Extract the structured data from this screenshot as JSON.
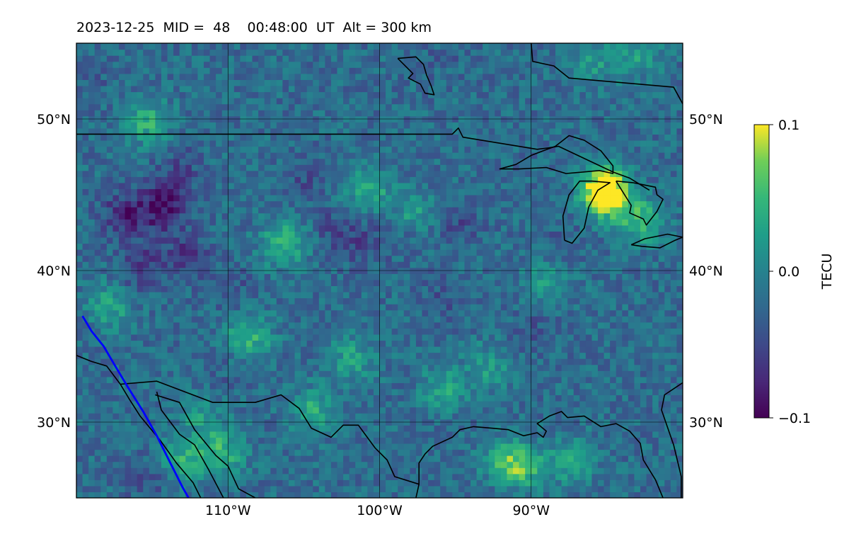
{
  "title": "2023-12-25  MID =  48    00:48:00  UT  Alt = 300 km",
  "chart_data": {
    "type": "heatmap",
    "title": "2023-12-25  MID =  48    00:48:00  UT  Alt = 300 km",
    "x_axis": {
      "lim": [
        -120,
        -80
      ],
      "ticks": [
        -110,
        -100,
        -90
      ],
      "tick_labels": [
        "110°W",
        "100°W",
        "90°W"
      ]
    },
    "y_axis": {
      "lim": [
        25,
        55
      ],
      "ticks": [
        30,
        40,
        50
      ],
      "tick_labels": [
        "30°N",
        "40°N",
        "50°N"
      ]
    },
    "grid": true,
    "colormap": "viridis",
    "colorbar": {
      "label": "TECU",
      "range": [
        -0.1,
        0.1
      ],
      "ticks": [
        0.1,
        0.0,
        -0.1
      ],
      "tick_labels": [
        "0.1",
        "0.0",
        "−0.1"
      ]
    },
    "field": {
      "background_tecu": -0.02,
      "anomalies": [
        {
          "lon": -114.5,
          "lat": 44.0,
          "tecu": -0.09
        },
        {
          "lon": -117.0,
          "lat": 43.5,
          "tecu": -0.075
        },
        {
          "lon": -116.0,
          "lat": 40.2,
          "tecu": -0.065
        },
        {
          "lon": -113.0,
          "lat": 40.8,
          "tecu": -0.06
        },
        {
          "lon": -113.5,
          "lat": 46.5,
          "tecu": -0.05
        },
        {
          "lon": -103.0,
          "lat": 42.5,
          "tecu": -0.05
        },
        {
          "lon": -101.0,
          "lat": 41.5,
          "tecu": -0.045
        },
        {
          "lon": -98.5,
          "lat": 42.5,
          "tecu": -0.04
        },
        {
          "lon": -95.0,
          "lat": 43.0,
          "tecu": -0.045
        },
        {
          "lon": -96.0,
          "lat": 38.0,
          "tecu": -0.04
        },
        {
          "lon": -105.0,
          "lat": 46.0,
          "tecu": -0.045
        },
        {
          "lon": -110.0,
          "lat": 38.5,
          "tecu": -0.04
        },
        {
          "lon": -88.0,
          "lat": 41.5,
          "tecu": -0.035
        },
        {
          "lon": -90.0,
          "lat": 36.0,
          "tecu": -0.035
        },
        {
          "lon": -96.0,
          "lat": 54.0,
          "tecu": -0.03
        },
        {
          "lon": -92.0,
          "lat": 26.0,
          "tecu": -0.04
        },
        {
          "lon": -110.0,
          "lat": 33.0,
          "tecu": -0.03
        },
        {
          "lon": -115.5,
          "lat": 26.0,
          "tecu": -0.045
        },
        {
          "lon": -119.0,
          "lat": 52.0,
          "tecu": -0.03
        },
        {
          "lon": -86.0,
          "lat": 53.5,
          "tecu": 0.02
        },
        {
          "lon": -83.0,
          "lat": 54.0,
          "tecu": 0.02
        },
        {
          "lon": -110.5,
          "lat": 27.8,
          "tecu": 0.045
        },
        {
          "lon": -113.2,
          "lat": 27.2,
          "tecu": 0.04
        },
        {
          "lon": -108.8,
          "lat": 35.5,
          "tecu": 0.045
        },
        {
          "lon": -106.5,
          "lat": 41.6,
          "tecu": 0.05
        },
        {
          "lon": -115.5,
          "lat": 49.6,
          "tecu": 0.04
        },
        {
          "lon": -92.0,
          "lat": 27.0,
          "tecu": 0.05
        },
        {
          "lon": -90.5,
          "lat": 26.8,
          "tecu": 0.045
        },
        {
          "lon": -87.5,
          "lat": 27.2,
          "tecu": 0.03
        },
        {
          "lon": -85.1,
          "lat": 44.9,
          "tecu": 0.09
        },
        {
          "lon": -85.6,
          "lat": 45.3,
          "tecu": 0.06
        },
        {
          "lon": -83.0,
          "lat": 43.1,
          "tecu": 0.05
        },
        {
          "lon": -101.0,
          "lat": 45.2,
          "tecu": 0.04
        },
        {
          "lon": -98.0,
          "lat": 43.5,
          "tecu": 0.03
        },
        {
          "lon": -102.0,
          "lat": 34.0,
          "tecu": 0.03
        },
        {
          "lon": -96.0,
          "lat": 32.0,
          "tecu": 0.03
        },
        {
          "lon": -104.5,
          "lat": 30.6,
          "tecu": 0.035
        },
        {
          "lon": -118.0,
          "lat": 37.5,
          "tecu": 0.03
        },
        {
          "lon": -112.0,
          "lat": 30.0,
          "tecu": 0.02
        },
        {
          "lon": -89.0,
          "lat": 39.0,
          "tecu": 0.025
        },
        {
          "lon": -93.0,
          "lat": 33.5,
          "tecu": 0.02
        }
      ]
    },
    "boundaries": [
      {
        "name": "us-canada-border",
        "points": [
          [
            -120,
            49
          ],
          [
            -95.2,
            49
          ],
          [
            -94.8,
            49.4
          ],
          [
            -94.5,
            48.8
          ],
          [
            -89.6,
            48
          ],
          [
            -88.8,
            48.1
          ],
          [
            -88.2,
            48.2
          ],
          [
            -84.6,
            46.5
          ],
          [
            -83.5,
            46.1
          ],
          [
            -82.2,
            45.3
          ]
        ]
      },
      {
        "name": "lake-superior",
        "points": [
          [
            -92.1,
            46.7
          ],
          [
            -91,
            47
          ],
          [
            -90,
            47.6
          ],
          [
            -89.2,
            47.9
          ],
          [
            -88.4,
            48.2
          ],
          [
            -87.5,
            48.9
          ],
          [
            -86.5,
            48.6
          ],
          [
            -85.4,
            47.9
          ],
          [
            -84.6,
            46.9
          ],
          [
            -84.6,
            46.4
          ],
          [
            -85.5,
            46.6
          ],
          [
            -86.6,
            46.5
          ],
          [
            -87.7,
            46.4
          ],
          [
            -89,
            46.8
          ],
          [
            -90.8,
            46.7
          ],
          [
            -92.1,
            46.7
          ]
        ]
      },
      {
        "name": "lake-michigan",
        "points": [
          [
            -87.8,
            42
          ],
          [
            -87.9,
            43.6
          ],
          [
            -87.5,
            45
          ],
          [
            -86.8,
            45.9
          ],
          [
            -86,
            45.9
          ],
          [
            -84.8,
            45.8
          ],
          [
            -85.6,
            45.3
          ],
          [
            -86.2,
            44.2
          ],
          [
            -86.5,
            42.8
          ],
          [
            -87.3,
            41.8
          ],
          [
            -87.8,
            42
          ]
        ]
      },
      {
        "name": "lake-huron",
        "points": [
          [
            -84.4,
            45.9
          ],
          [
            -83.3,
            45.8
          ],
          [
            -81.8,
            45.5
          ],
          [
            -81.7,
            45.0
          ],
          [
            -81.3,
            44.7
          ],
          [
            -81.7,
            43.9
          ],
          [
            -82.4,
            43.0
          ],
          [
            -82.6,
            43.4
          ],
          [
            -83.5,
            43.8
          ],
          [
            -83.4,
            44.3
          ],
          [
            -84.4,
            45.9
          ]
        ]
      },
      {
        "name": "lake-erie",
        "points": [
          [
            -83.4,
            41.7
          ],
          [
            -82.7,
            41.6
          ],
          [
            -81.5,
            41.5
          ],
          [
            -80.5,
            42.0
          ],
          [
            -80,
            42.2
          ],
          [
            -81,
            42.4
          ],
          [
            -82.5,
            42.1
          ],
          [
            -83.4,
            41.7
          ]
        ]
      },
      {
        "name": "lake-winnipeg",
        "points": [
          [
            -98.8,
            54
          ],
          [
            -97.6,
            54.1
          ],
          [
            -97.1,
            53.6
          ],
          [
            -96.9,
            52.9
          ],
          [
            -96.6,
            52.2
          ],
          [
            -96.4,
            51.6
          ],
          [
            -97,
            51.7
          ],
          [
            -97.3,
            52.3
          ],
          [
            -98.1,
            52.7
          ],
          [
            -97.8,
            53.0
          ],
          [
            -98.8,
            54
          ]
        ]
      },
      {
        "name": "hudson-bay-coast",
        "points": [
          [
            -90,
            55
          ],
          [
            -89.9,
            53.8
          ],
          [
            -88.5,
            53.5
          ],
          [
            -87.5,
            52.7
          ],
          [
            -80.6,
            52.1
          ],
          [
            -80,
            51
          ]
        ]
      },
      {
        "name": "us-mexico-border-and-gulf-coast",
        "points": [
          [
            -120,
            34.4
          ],
          [
            -119,
            34
          ],
          [
            -118,
            33.7
          ],
          [
            -117.1,
            32.5
          ],
          [
            -114.7,
            32.7
          ],
          [
            -111,
            31.3
          ],
          [
            -108.2,
            31.3
          ],
          [
            -106.5,
            31.8
          ],
          [
            -105.3,
            30.9
          ],
          [
            -104.5,
            29.6
          ],
          [
            -103.2,
            29
          ],
          [
            -102.4,
            29.8
          ],
          [
            -101.4,
            29.8
          ],
          [
            -100.3,
            28.3
          ],
          [
            -99.5,
            27.5
          ],
          [
            -99,
            26.4
          ],
          [
            -97.4,
            25.9
          ],
          [
            -97.4,
            27.3
          ],
          [
            -97.0,
            27.9
          ],
          [
            -96.5,
            28.4
          ],
          [
            -95.2,
            29
          ],
          [
            -94.7,
            29.5
          ],
          [
            -93.8,
            29.7
          ],
          [
            -92.6,
            29.6
          ],
          [
            -91.5,
            29.5
          ],
          [
            -90.5,
            29.1
          ],
          [
            -89.6,
            29.3
          ],
          [
            -89.2,
            29.0
          ],
          [
            -89,
            29.4
          ],
          [
            -89.6,
            29.9
          ],
          [
            -88.8,
            30.4
          ],
          [
            -88.0,
            30.7
          ],
          [
            -87.6,
            30.3
          ],
          [
            -86.5,
            30.4
          ],
          [
            -85.4,
            29.7
          ],
          [
            -84.4,
            29.9
          ],
          [
            -83.5,
            29.4
          ],
          [
            -82.8,
            28.6
          ],
          [
            -82.6,
            27.5
          ],
          [
            -81.8,
            26.2
          ],
          [
            -81.3,
            25
          ]
        ]
      },
      {
        "name": "mexico-gulf-coast",
        "points": [
          [
            -97.4,
            25.9
          ],
          [
            -97.6,
            25
          ],
          [
            -97.7,
            24.5
          ]
        ]
      },
      {
        "name": "florida-atlantic-coast",
        "points": [
          [
            -80.1,
            25
          ],
          [
            -80.1,
            26.4
          ],
          [
            -80.6,
            28.5
          ],
          [
            -81.4,
            30.8
          ],
          [
            -81.2,
            31.8
          ],
          [
            -80,
            32.6
          ]
        ]
      },
      {
        "name": "baja-california",
        "points": [
          [
            -117.1,
            32.5
          ],
          [
            -116.5,
            31.5
          ],
          [
            -115.8,
            30.4
          ],
          [
            -114.4,
            28.7
          ],
          [
            -113.4,
            27.3
          ],
          [
            -112.3,
            26
          ],
          [
            -111.8,
            25
          ]
        ]
      },
      {
        "name": "gulf-of-california-coast",
        "points": [
          [
            -114.7,
            32
          ],
          [
            -114.4,
            30.8
          ],
          [
            -113.2,
            29.2
          ],
          [
            -112.2,
            28.5
          ],
          [
            -111.3,
            26.9
          ],
          [
            -110.3,
            25
          ]
        ]
      },
      {
        "name": "mainland-pacific-coast",
        "points": [
          [
            -114.8,
            31.8
          ],
          [
            -113.2,
            31.3
          ],
          [
            -112.2,
            29.5
          ],
          [
            -110.8,
            27.8
          ],
          [
            -110,
            27.1
          ],
          [
            -109.3,
            25.6
          ],
          [
            -108.2,
            25
          ]
        ]
      }
    ],
    "highlight_line": {
      "color": "#0000ff",
      "points": [
        [
          -119.6,
          37
        ],
        [
          -119,
          36
        ],
        [
          -118.2,
          35
        ],
        [
          -117.5,
          33.8
        ],
        [
          -116.6,
          32.3
        ],
        [
          -115.6,
          30.7
        ],
        [
          -114.7,
          29.1
        ],
        [
          -113.8,
          27.3
        ],
        [
          -113,
          25.7
        ],
        [
          -112.6,
          25
        ]
      ]
    }
  }
}
